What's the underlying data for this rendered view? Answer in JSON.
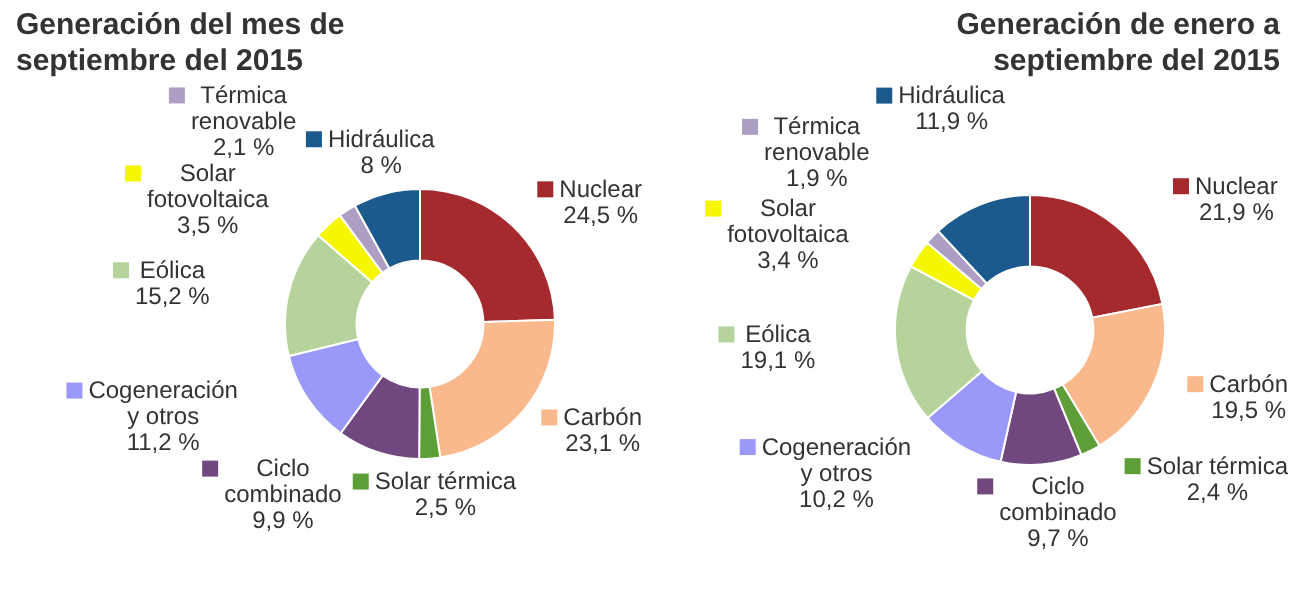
{
  "chart_data": [
    {
      "type": "donut",
      "legend": "left",
      "title": "Generación del mes de septiembre del 2015",
      "categories": [
        "Nuclear",
        "Carbón",
        "Solar térmica",
        "Ciclo combinado",
        "Cogeneración y otros",
        "Eólica",
        "Solar fotovoltaica",
        "Térmica renovable",
        "Hidráulica"
      ],
      "values": [
        24.5,
        23.1,
        2.5,
        9.9,
        11.2,
        15.2,
        3.5,
        2.1,
        8
      ],
      "value_labels": [
        "24,5 %",
        "23,1 %",
        "2,5 %",
        "9,9 %",
        "11,2 %",
        "15,2 %",
        "3,5 %",
        "2,1 %",
        "8 %"
      ],
      "colors": [
        "#a52a2e",
        "#fab98c",
        "#5e9e36",
        "#70477f",
        "#9a99fa",
        "#b5d39a",
        "#f6f600",
        "#ad9fc4",
        "#1c5a8e"
      ]
    },
    {
      "type": "donut",
      "legend": "left",
      "title": "Generación de enero a septiembre del 2015",
      "categories": [
        "Nuclear",
        "Carbón",
        "Solar térmica",
        "Ciclo combinado",
        "Cogeneración y otros",
        "Eólica",
        "Solar fotovoltaica",
        "Térmica renovable",
        "Hidráulica"
      ],
      "values": [
        21.9,
        19.5,
        2.4,
        9.7,
        10.2,
        19.1,
        3.4,
        1.9,
        11.9
      ],
      "value_labels": [
        "21,9 %",
        "19,5 %",
        "2,4 %",
        "9,7 %",
        "10,2 %",
        "19,1 %",
        "3,4 %",
        "1,9 %",
        "11,9 %"
      ],
      "colors": [
        "#a52a2e",
        "#fab98c",
        "#5e9e36",
        "#70477f",
        "#9a99fa",
        "#b5d39a",
        "#f6f600",
        "#ad9fc4",
        "#1c5a8e"
      ]
    }
  ]
}
